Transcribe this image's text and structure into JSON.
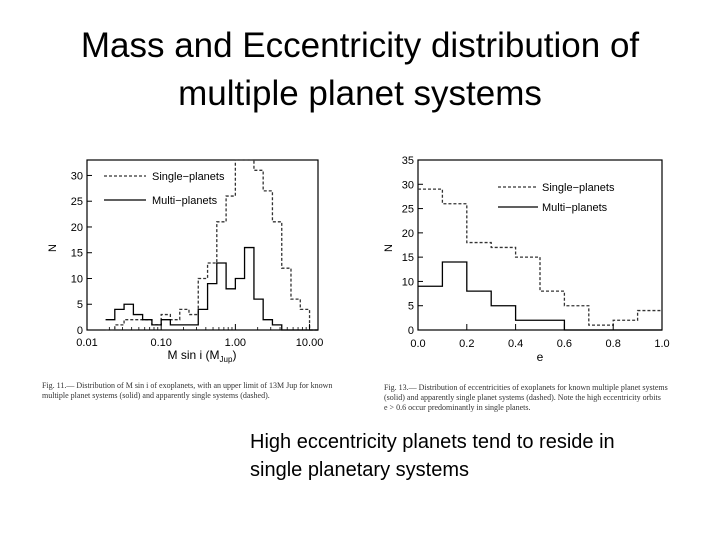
{
  "slide": {
    "title_line1": "Mass and Eccentricity distribution of",
    "title_line2": "multiple planet systems",
    "body_line1": "High eccentricity planets tend to reside in",
    "body_line2": "single planetary systems",
    "caption_left_line1": "Fig. 11.— Distribution of M sin i of exoplanets, with an upper limit of 13M Jup for known",
    "caption_left_line2": "multiple planet systems (solid) and apparently single systems (dashed).",
    "caption_right_line1": "Fig. 13.— Distribution of eccentricities of exoplanets for known multiple planet systems",
    "caption_right_line2": "(solid) and apparently single planet systems (dashed). Note the high eccentricity orbits",
    "caption_right_line3": "e > 0.6 occur predominantly in single planets."
  },
  "chart_data": [
    {
      "type": "step",
      "xlabel": "M sin i (M",
      "xlabel_sub": "Jup",
      "ylabel": "N",
      "xscale": "log",
      "xlim": [
        0.01,
        13
      ],
      "ylim": [
        0,
        33
      ],
      "xtick_labels": [
        "0.01",
        "0.10",
        "1.00",
        "10.00"
      ],
      "xticks": [
        0.01,
        0.1,
        1,
        10
      ],
      "yticks": [
        0,
        5,
        10,
        15,
        20,
        25,
        30
      ],
      "legend_position": "top-left",
      "series": [
        {
          "name": "Single−planets",
          "style": "dashed",
          "color": "#333333",
          "x": [
            0.0178,
            0.0237,
            0.0316,
            0.0422,
            0.0562,
            0.075,
            0.1,
            0.133,
            0.178,
            0.237,
            0.316,
            0.422,
            0.562,
            0.75,
            1.0,
            1.33,
            1.78,
            2.37,
            3.16,
            4.22,
            5.62,
            7.5,
            10.0,
            13.0
          ],
          "y": [
            0,
            1,
            2,
            2,
            2,
            1,
            3,
            2,
            4,
            3,
            10,
            13,
            21,
            26,
            33,
            33,
            31,
            27,
            21,
            12,
            6,
            4,
            0,
            0
          ]
        },
        {
          "name": "Multi−planets",
          "style": "solid",
          "color": "#000000",
          "x": [
            0.0178,
            0.0237,
            0.0316,
            0.0422,
            0.0562,
            0.075,
            0.1,
            0.133,
            0.178,
            0.237,
            0.316,
            0.422,
            0.562,
            0.75,
            1.0,
            1.33,
            1.78,
            2.37,
            3.16,
            4.22,
            5.62,
            7.5,
            10.0,
            13.0
          ],
          "y": [
            2,
            4,
            5,
            3,
            2,
            1,
            2,
            1,
            1,
            1,
            4,
            9,
            13,
            8,
            10,
            16,
            6,
            2,
            1,
            0,
            0,
            0,
            0,
            0
          ]
        }
      ]
    },
    {
      "type": "step",
      "xlabel": "e",
      "ylabel": "N",
      "xlim": [
        0,
        1
      ],
      "ylim": [
        0,
        35
      ],
      "xtick_labels": [
        "0.0",
        "0.2",
        "0.4",
        "0.6",
        "0.8",
        "1.0"
      ],
      "xticks": [
        0,
        0.2,
        0.4,
        0.6,
        0.8,
        1.0
      ],
      "yticks": [
        0,
        5,
        10,
        15,
        20,
        25,
        30,
        35
      ],
      "legend_position": "top-right",
      "series": [
        {
          "name": "Single−planets",
          "style": "dashed",
          "color": "#333333",
          "x_edges": [
            0.0,
            0.1,
            0.2,
            0.3,
            0.4,
            0.5,
            0.6,
            0.7,
            0.8,
            0.9,
            1.0
          ],
          "y": [
            29,
            26,
            18,
            17,
            15,
            8,
            5,
            1,
            2,
            4
          ]
        },
        {
          "name": "Multi−planets",
          "style": "solid",
          "color": "#000000",
          "x_edges": [
            0.0,
            0.1,
            0.2,
            0.3,
            0.4,
            0.5,
            0.6,
            0.7,
            0.8,
            0.9,
            1.0
          ],
          "y": [
            9,
            14,
            8,
            5,
            2,
            2,
            0,
            0,
            0,
            0
          ]
        }
      ]
    }
  ]
}
